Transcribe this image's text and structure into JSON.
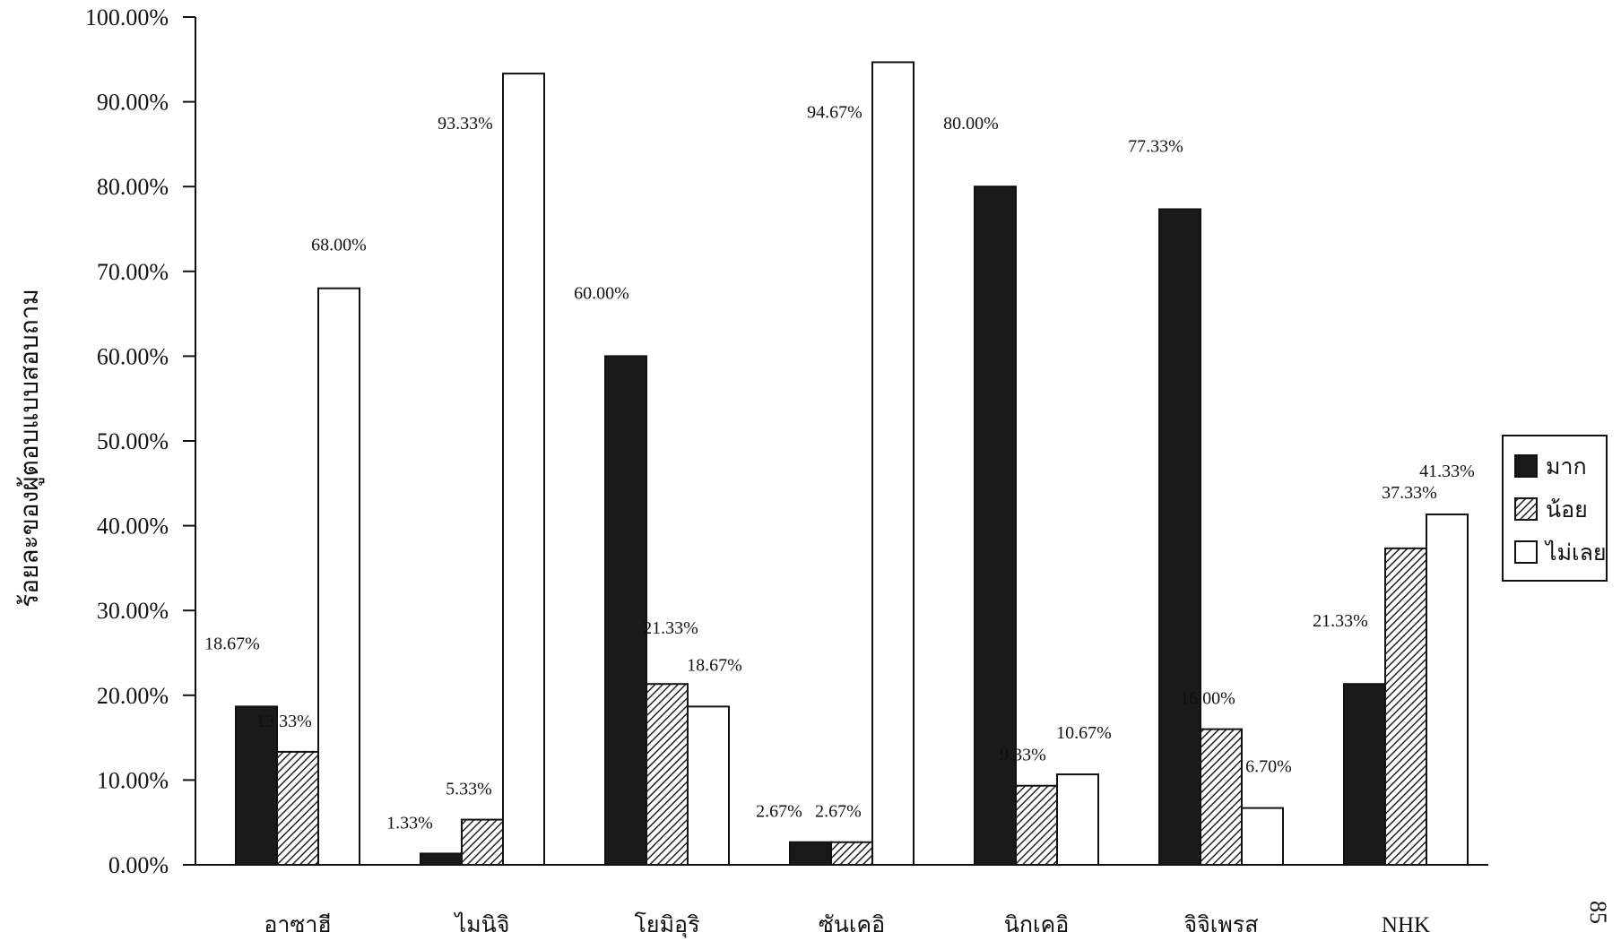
{
  "page_number": "85",
  "chart_data": {
    "type": "bar",
    "title": "",
    "xlabel": "",
    "ylabel": "ร้อยละของผู้ตอบแบบสอบถาม",
    "ylim": [
      0,
      100
    ],
    "ytick_step": 10,
    "ytick_labels": [
      "0.00%",
      "10.00%",
      "20.00%",
      "30.00%",
      "40.00%",
      "50.00%",
      "60.00%",
      "70.00%",
      "80.00%",
      "90.00%",
      "100.00%"
    ],
    "categories": [
      "อาซาฮี",
      "ไมนิจิ",
      "โยมิอุริ",
      "ซันเคอิ",
      "นิกเคอิ",
      "จิจิเพรส",
      "NHK"
    ],
    "legend_position": "right",
    "grid": false,
    "series": [
      {
        "name": "มาก",
        "fill": "#1a1a1a",
        "pattern": "solid",
        "values": [
          18.67,
          1.33,
          60.0,
          2.67,
          80.0,
          77.33,
          21.33
        ],
        "labels": [
          "18.67%",
          "1.33%",
          "60.00%",
          "2.67%",
          "80.00%",
          "77.33%",
          "21.33%"
        ]
      },
      {
        "name": "น้อย",
        "fill": "#555555",
        "pattern": "hatched",
        "values": [
          13.33,
          5.33,
          21.33,
          2.67,
          9.33,
          16.0,
          37.33
        ],
        "labels": [
          "13.33%",
          "5.33%",
          "21.33%",
          "2.67%",
          "9.33%",
          "16.00%",
          "37.33%"
        ]
      },
      {
        "name": "ไม่เลย",
        "fill": "#ffffff",
        "pattern": "empty",
        "values": [
          68.0,
          93.33,
          18.67,
          94.67,
          10.67,
          6.7,
          41.33
        ],
        "labels": [
          "68.00%",
          "93.33%",
          "18.67%",
          "94.67%",
          "10.67%",
          "6.70%",
          "41.33%"
        ]
      }
    ]
  }
}
